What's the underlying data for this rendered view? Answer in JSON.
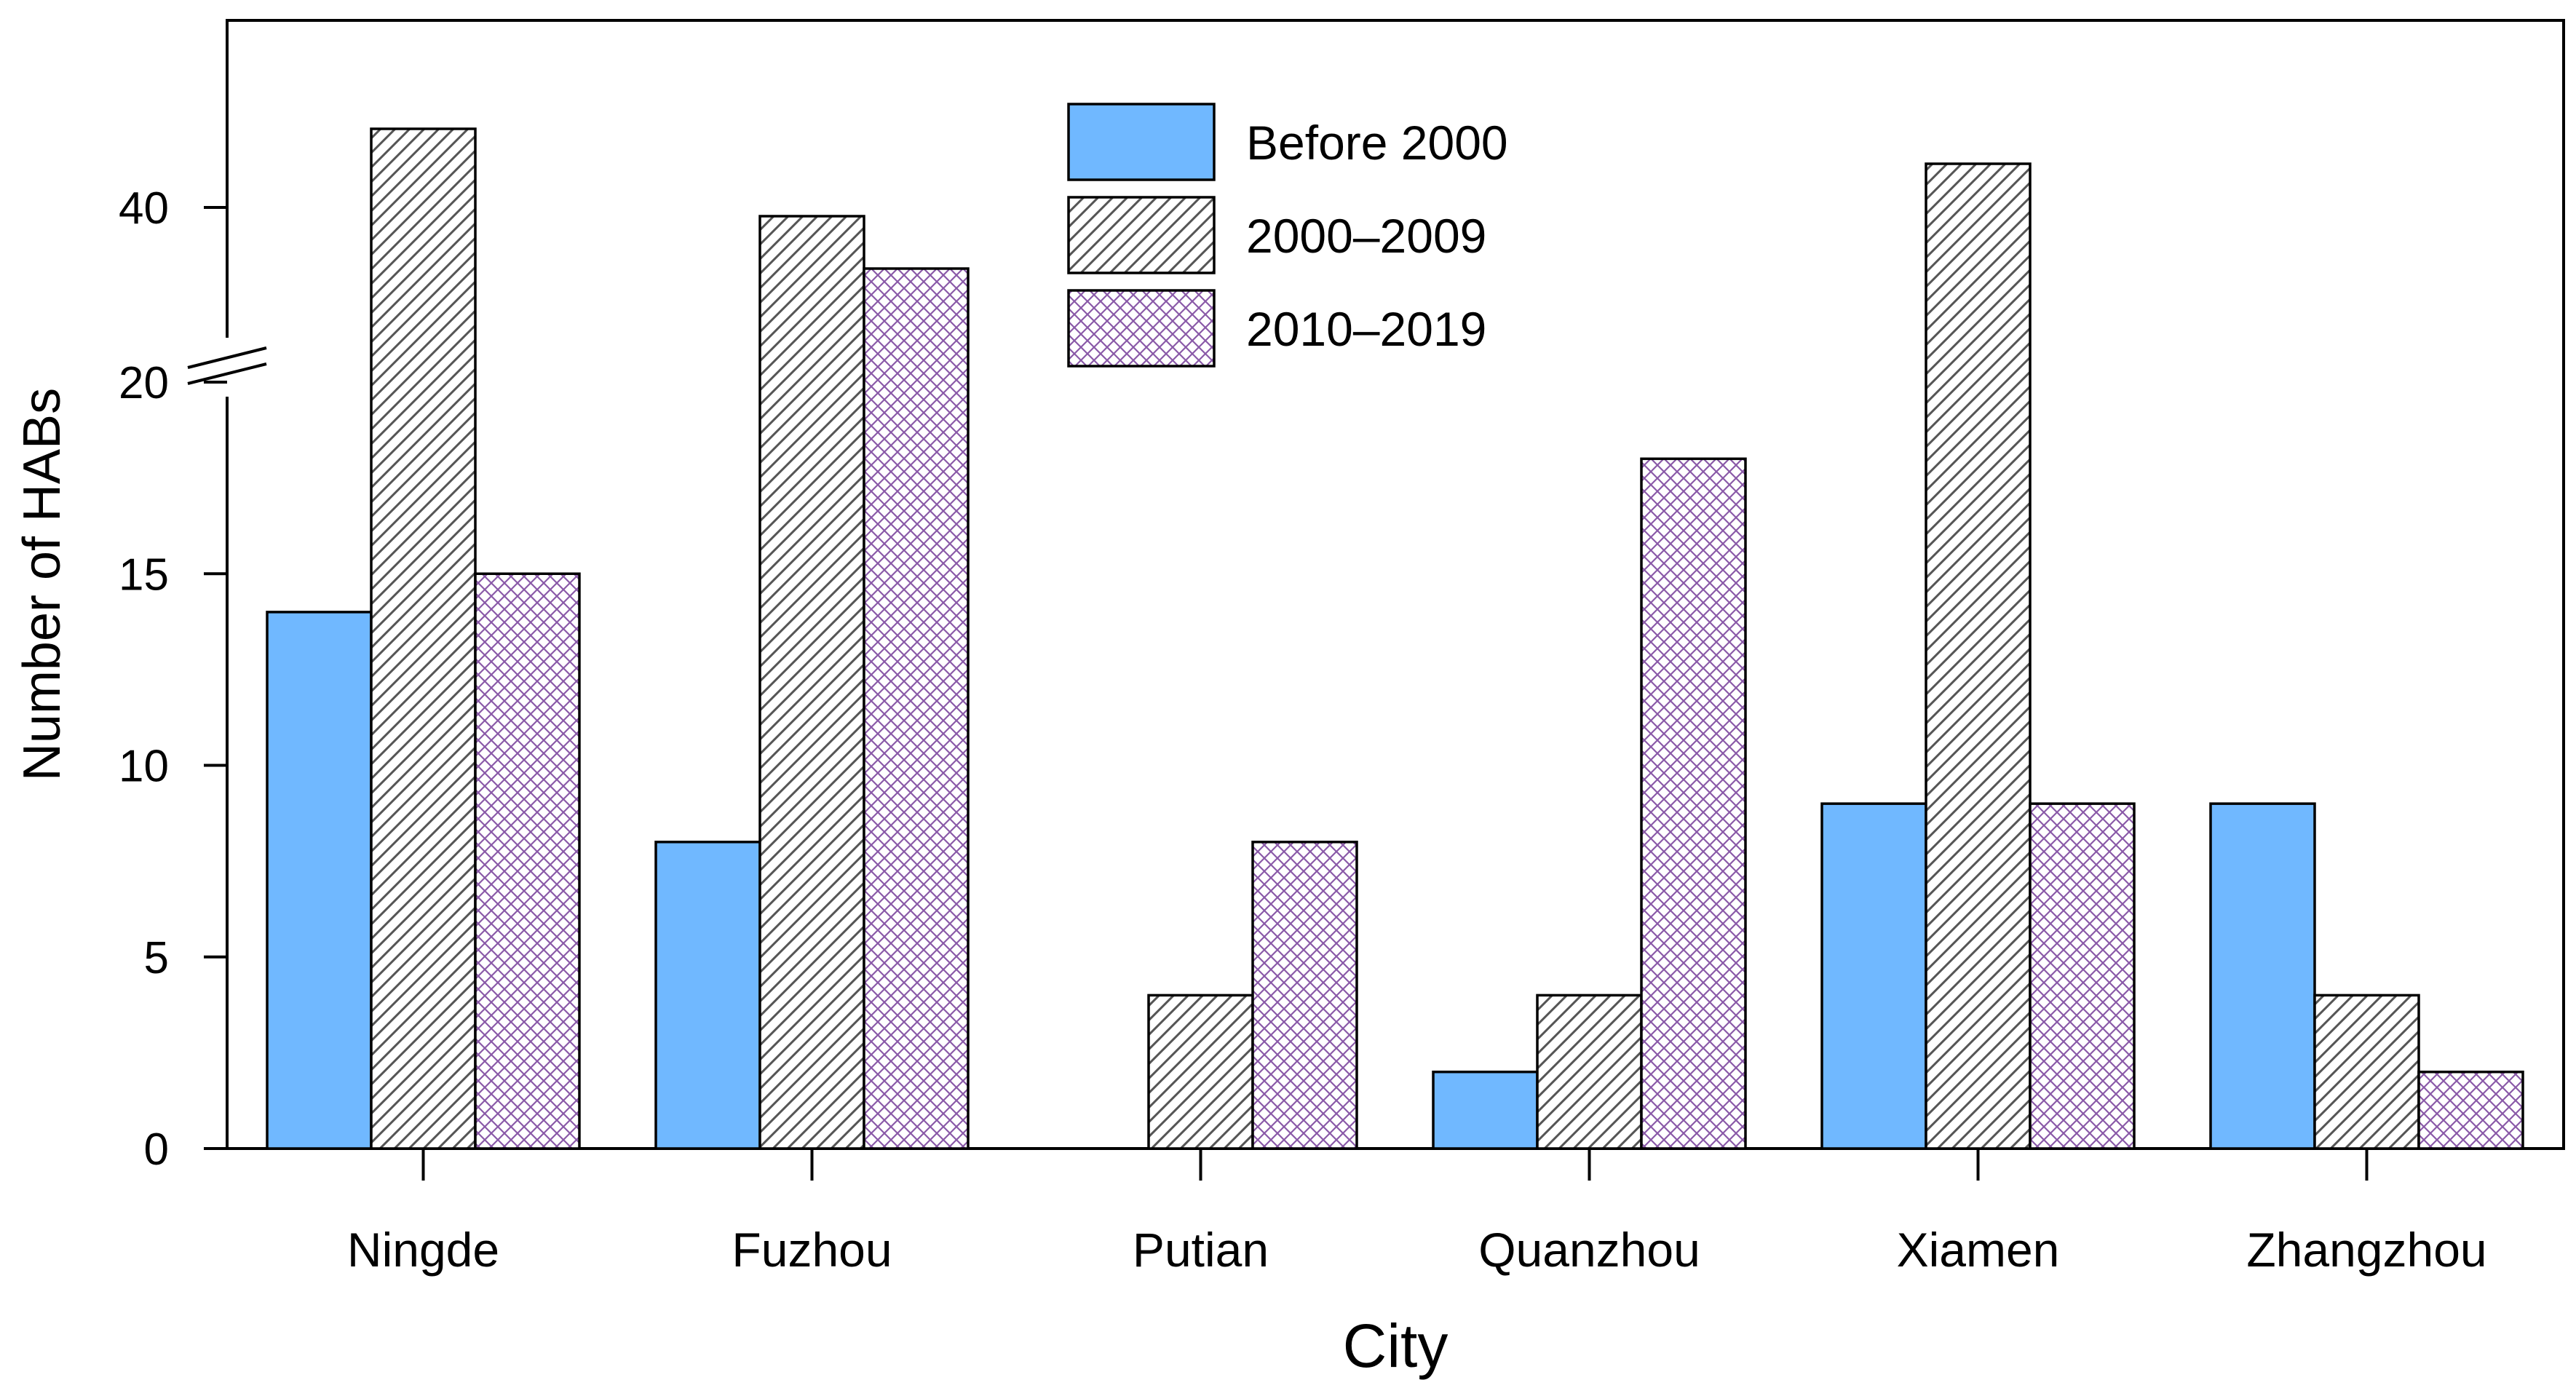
{
  "chart_data": {
    "type": "bar",
    "xlabel": "City",
    "ylabel": "Number of HABs",
    "categories": [
      "Ningde",
      "Fuzhou",
      "Putian",
      "Quanzhou",
      "Xiamen",
      "Zhangzhou"
    ],
    "series": [
      {
        "name": "Before 2000",
        "values": [
          14,
          8,
          0,
          2,
          9,
          9
        ],
        "fill": "#70b8ff",
        "pattern": "solid"
      },
      {
        "name": "2000–2009",
        "values": [
          49,
          39,
          4,
          4,
          45,
          4
        ],
        "fill": "#ffffff",
        "pattern": "diagonal-hatch"
      },
      {
        "name": "2010–2019",
        "values": [
          15,
          33,
          8,
          18,
          9,
          2
        ],
        "fill": "#ffffff",
        "pattern": "crosshatch"
      }
    ],
    "y_axis": {
      "lower_segment": {
        "range": [
          0,
          20
        ],
        "ticks": [
          0,
          5,
          10,
          15,
          20
        ]
      },
      "upper_segment": {
        "range": [
          20,
          50
        ],
        "ticks": [
          40
        ]
      },
      "broken": true
    },
    "legend_position": "top-center",
    "grid": false,
    "colors": {
      "hatch_line": "#555555",
      "crosshatch_line": "#8a5aa8",
      "axis": "#000000"
    }
  }
}
